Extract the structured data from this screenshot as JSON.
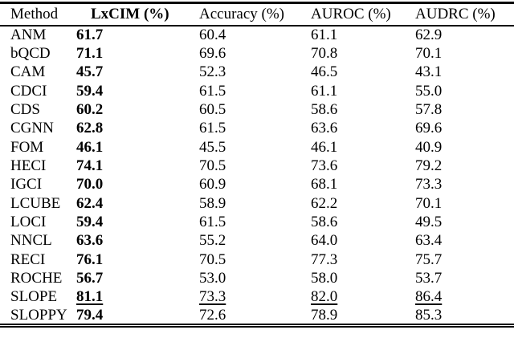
{
  "table": {
    "columns": [
      {
        "key": "method",
        "label": "Method"
      },
      {
        "key": "lxcim",
        "label": "LxCIM (%)"
      },
      {
        "key": "accuracy",
        "label": "Accuracy (%)"
      },
      {
        "key": "auroc",
        "label": "AUROC (%)"
      },
      {
        "key": "audrc",
        "label": "AUDRC (%)"
      }
    ],
    "rows": [
      {
        "method": "ANM",
        "lxcim": "61.7",
        "accuracy": "60.4",
        "auroc": "61.1",
        "audrc": "62.9",
        "best": false
      },
      {
        "method": "bQCD",
        "lxcim": "71.1",
        "accuracy": "69.6",
        "auroc": "70.8",
        "audrc": "70.1",
        "best": false
      },
      {
        "method": "CAM",
        "lxcim": "45.7",
        "accuracy": "52.3",
        "auroc": "46.5",
        "audrc": "43.1",
        "best": false
      },
      {
        "method": "CDCI",
        "lxcim": "59.4",
        "accuracy": "61.5",
        "auroc": "61.1",
        "audrc": "55.0",
        "best": false
      },
      {
        "method": "CDS",
        "lxcim": "60.2",
        "accuracy": "60.5",
        "auroc": "58.6",
        "audrc": "57.8",
        "best": false
      },
      {
        "method": "CGNN",
        "lxcim": "62.8",
        "accuracy": "61.5",
        "auroc": "63.6",
        "audrc": "69.6",
        "best": false
      },
      {
        "method": "FOM",
        "lxcim": "46.1",
        "accuracy": "45.5",
        "auroc": "46.1",
        "audrc": "40.9",
        "best": false
      },
      {
        "method": "HECI",
        "lxcim": "74.1",
        "accuracy": "70.5",
        "auroc": "73.6",
        "audrc": "79.2",
        "best": false
      },
      {
        "method": "IGCI",
        "lxcim": "70.0",
        "accuracy": "60.9",
        "auroc": "68.1",
        "audrc": "73.3",
        "best": false
      },
      {
        "method": "LCUBE",
        "lxcim": "62.4",
        "accuracy": "58.9",
        "auroc": "62.2",
        "audrc": "70.1",
        "best": false
      },
      {
        "method": "LOCI",
        "lxcim": "59.4",
        "accuracy": "61.5",
        "auroc": "58.6",
        "audrc": "49.5",
        "best": false
      },
      {
        "method": "NNCL",
        "lxcim": "63.6",
        "accuracy": "55.2",
        "auroc": "64.0",
        "audrc": "63.4",
        "best": false
      },
      {
        "method": "RECI",
        "lxcim": "76.1",
        "accuracy": "70.5",
        "auroc": "77.3",
        "audrc": "75.7",
        "best": false
      },
      {
        "method": "ROCHE",
        "lxcim": "56.7",
        "accuracy": "53.0",
        "auroc": "58.0",
        "audrc": "53.7",
        "best": false
      },
      {
        "method": "SLOPE",
        "lxcim": "81.1",
        "accuracy": "73.3",
        "auroc": "82.0",
        "audrc": "86.4",
        "best": true
      },
      {
        "method": "SLOPPY",
        "lxcim": "79.4",
        "accuracy": "72.6",
        "auroc": "78.9",
        "audrc": "85.3",
        "best": false
      }
    ]
  },
  "chart_data": {
    "type": "table",
    "title": "",
    "columns": [
      "Method",
      "LxCIM (%)",
      "Accuracy (%)",
      "AUROC (%)",
      "AUDRC (%)"
    ],
    "rows": [
      [
        "ANM",
        61.7,
        60.4,
        61.1,
        62.9
      ],
      [
        "bQCD",
        71.1,
        69.6,
        70.8,
        70.1
      ],
      [
        "CAM",
        45.7,
        52.3,
        46.5,
        43.1
      ],
      [
        "CDCI",
        59.4,
        61.5,
        61.1,
        55.0
      ],
      [
        "CDS",
        60.2,
        60.5,
        58.6,
        57.8
      ],
      [
        "CGNN",
        62.8,
        61.5,
        63.6,
        69.6
      ],
      [
        "FOM",
        46.1,
        45.5,
        46.1,
        40.9
      ],
      [
        "HECI",
        74.1,
        70.5,
        73.6,
        79.2
      ],
      [
        "IGCI",
        70.0,
        60.9,
        68.1,
        73.3
      ],
      [
        "LCUBE",
        62.4,
        58.9,
        62.2,
        70.1
      ],
      [
        "LOCI",
        59.4,
        61.5,
        58.6,
        49.5
      ],
      [
        "NNCL",
        63.6,
        55.2,
        64.0,
        63.4
      ],
      [
        "RECI",
        76.1,
        70.5,
        77.3,
        75.7
      ],
      [
        "ROCHE",
        56.7,
        53.0,
        58.0,
        53.7
      ],
      [
        "SLOPE",
        81.1,
        73.3,
        82.0,
        86.4
      ],
      [
        "SLOPPY",
        79.4,
        72.6,
        78.9,
        85.3
      ]
    ],
    "notes": "LxCIM column values rendered bold; SLOPE row values underlined (best per column)."
  }
}
